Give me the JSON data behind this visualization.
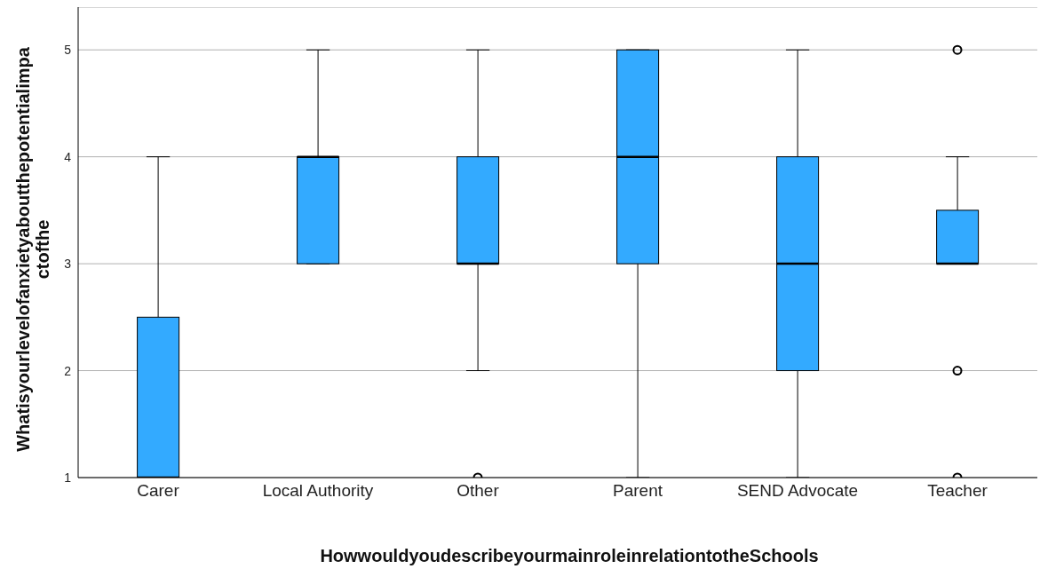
{
  "chart_data": {
    "type": "box",
    "xlabel": "HowwouldyoudescribeyourmainroleinrelationtotheSchools",
    "ylabel": "Whatisyourlevelofanxietyaboutthepotentialimpactofthe",
    "categories": [
      "Carer",
      "Local Authority",
      "Other",
      "Parent",
      "SEND Advocate",
      "Teacher"
    ],
    "boxes": [
      {
        "low": 1,
        "q1": 1,
        "median": 1,
        "q3": 2.5,
        "high": 4
      },
      {
        "low": 3,
        "q1": 3,
        "median": 4,
        "q3": 4,
        "high": 5
      },
      {
        "low": 2,
        "q1": 3,
        "median": 3,
        "q3": 4,
        "high": 5,
        "outliers": [
          1
        ]
      },
      {
        "low": 1,
        "q1": 3,
        "median": 4,
        "q3": 5,
        "high": 5
      },
      {
        "low": 1,
        "q1": 2,
        "median": 3,
        "q3": 4,
        "high": 5
      },
      {
        "low": 3,
        "q1": 3,
        "median": 3,
        "q3": 3.5,
        "high": 4,
        "outliers": [
          5,
          2,
          1
        ]
      }
    ],
    "color": "#33aaff",
    "ylim": [
      1,
      5.4
    ],
    "yticks": [
      1,
      2,
      3,
      4,
      5
    ],
    "grid": "y"
  }
}
